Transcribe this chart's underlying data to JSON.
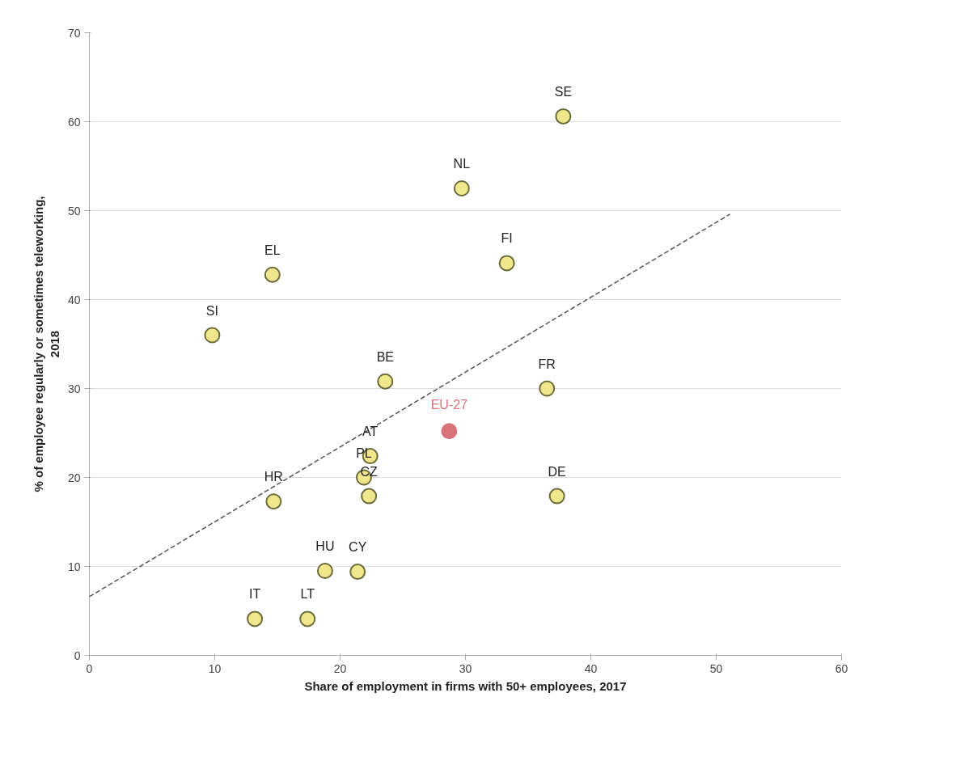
{
  "chart_data": {
    "type": "scatter",
    "xlabel": "Share of employment in firms with 50+ employees, 2017",
    "ylabel": "% of employee regularly or sometimes teleworking,\n2018",
    "xlim": [
      0,
      60
    ],
    "ylim": [
      0,
      70
    ],
    "xticks": [
      0,
      10,
      20,
      30,
      40,
      50,
      60
    ],
    "yticks": [
      0,
      10,
      20,
      30,
      40,
      50,
      60,
      70
    ],
    "grid": "y",
    "legend": false,
    "marker": "circle",
    "series": [
      {
        "color": "#f0e68c",
        "x": [
          37.8,
          29.7,
          33.3,
          14.6,
          9.8,
          23.6,
          36.5,
          22.4,
          21.9,
          22.3,
          37.3,
          14.7,
          18.8,
          21.4,
          13.2,
          17.4
        ],
        "values": [
          60.6,
          52.5,
          44.1,
          42.8,
          36.0,
          30.8,
          30.0,
          22.4,
          20.0,
          17.9,
          17.9,
          17.3,
          9.5,
          9.4,
          4.1,
          4.1
        ]
      },
      {
        "name": "EU-27",
        "color": "#d9737a",
        "x": [
          28.7
        ],
        "values": [
          25.2
        ]
      },
      {
        "type": "line",
        "line_style": "dashed",
        "marker": "none",
        "color": "#555555",
        "x": [
          0,
          51.1
        ],
        "values": [
          6.6,
          49.6
        ]
      }
    ],
    "annotations": [
      {
        "text": "SE",
        "x": 37.8,
        "y": 60.6
      },
      {
        "text": "NL",
        "x": 29.7,
        "y": 52.5
      },
      {
        "text": "FI",
        "x": 33.3,
        "y": 44.1
      },
      {
        "text": "EL",
        "x": 14.6,
        "y": 42.8
      },
      {
        "text": "SI",
        "x": 9.8,
        "y": 36.0
      },
      {
        "text": "BE",
        "x": 23.6,
        "y": 30.8
      },
      {
        "text": "FR",
        "x": 36.5,
        "y": 30.0
      },
      {
        "text": "AT",
        "x": 22.4,
        "y": 22.4
      },
      {
        "text": "PL",
        "x": 21.9,
        "y": 20.0
      },
      {
        "text": "CZ",
        "x": 22.3,
        "y": 17.9
      },
      {
        "text": "DE",
        "x": 37.3,
        "y": 17.9
      },
      {
        "text": "HR",
        "x": 14.7,
        "y": 17.3
      },
      {
        "text": "HU",
        "x": 18.8,
        "y": 9.5
      },
      {
        "text": "CY",
        "x": 21.4,
        "y": 9.4
      },
      {
        "text": "IT",
        "x": 13.2,
        "y": 4.1
      },
      {
        "text": "LT",
        "x": 17.4,
        "y": 4.1
      }
    ]
  }
}
